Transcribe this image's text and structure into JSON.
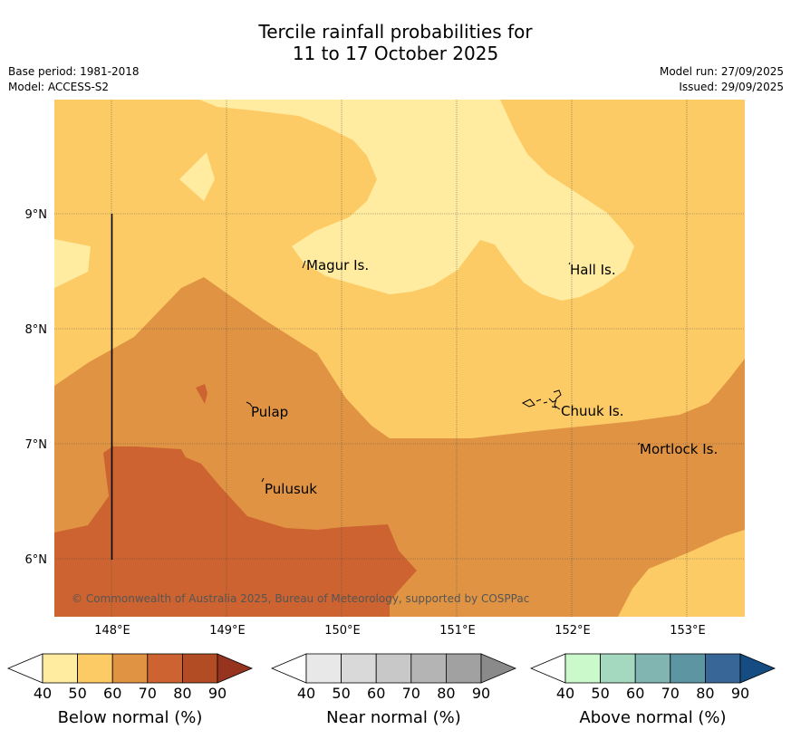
{
  "header": {
    "title_line1": "Tercile rainfall probabilities for",
    "title_line2": "11 to 17 October 2025",
    "base_period": "Base period: 1981-2018",
    "model": "Model: ACCESS-S2",
    "model_run": "Model run: 27/09/2025",
    "issued": "Issued: 29/09/2025"
  },
  "map": {
    "lat_labels": [
      "9°N",
      "8°N",
      "7°N",
      "6°N"
    ],
    "lon_labels": [
      "148°E",
      "149°E",
      "150°E",
      "151°E",
      "152°E",
      "153°E"
    ],
    "places": [
      "Magur Is.",
      "Hall Is.",
      "Pulap",
      "Chuuk Is.",
      "Mortlock Is.",
      "Pulusuk"
    ],
    "copyright": "© Commonwealth of Australia 2025, Bureau of Meteorology, supported by COSPPac",
    "colors": {
      "below_40_50": "#ffeca0",
      "below_50_60": "#fdcb66",
      "below_60_70": "#e09443",
      "below_70_80": "#cc6330",
      "grid": "#444444"
    }
  },
  "legends": [
    {
      "label": "Below normal (%)",
      "ticks": [
        "40",
        "50",
        "60",
        "70",
        "80",
        "90"
      ],
      "colors": [
        "#ffeca0",
        "#fdcb66",
        "#e09443",
        "#cc6330",
        "#b24c25",
        "#963420"
      ]
    },
    {
      "label": "Near normal (%)",
      "ticks": [
        "40",
        "50",
        "60",
        "70",
        "80",
        "90"
      ],
      "colors": [
        "#e8e8e8",
        "#d9d9d9",
        "#c8c8c8",
        "#b4b4b4",
        "#a1a1a1",
        "#8a8a8a"
      ]
    },
    {
      "label": "Above normal (%)",
      "ticks": [
        "40",
        "50",
        "60",
        "70",
        "80",
        "90"
      ],
      "colors": [
        "#ccf9cb",
        "#a5d9bf",
        "#80b5b2",
        "#5e95a3",
        "#386797",
        "#154c82"
      ]
    }
  ]
}
